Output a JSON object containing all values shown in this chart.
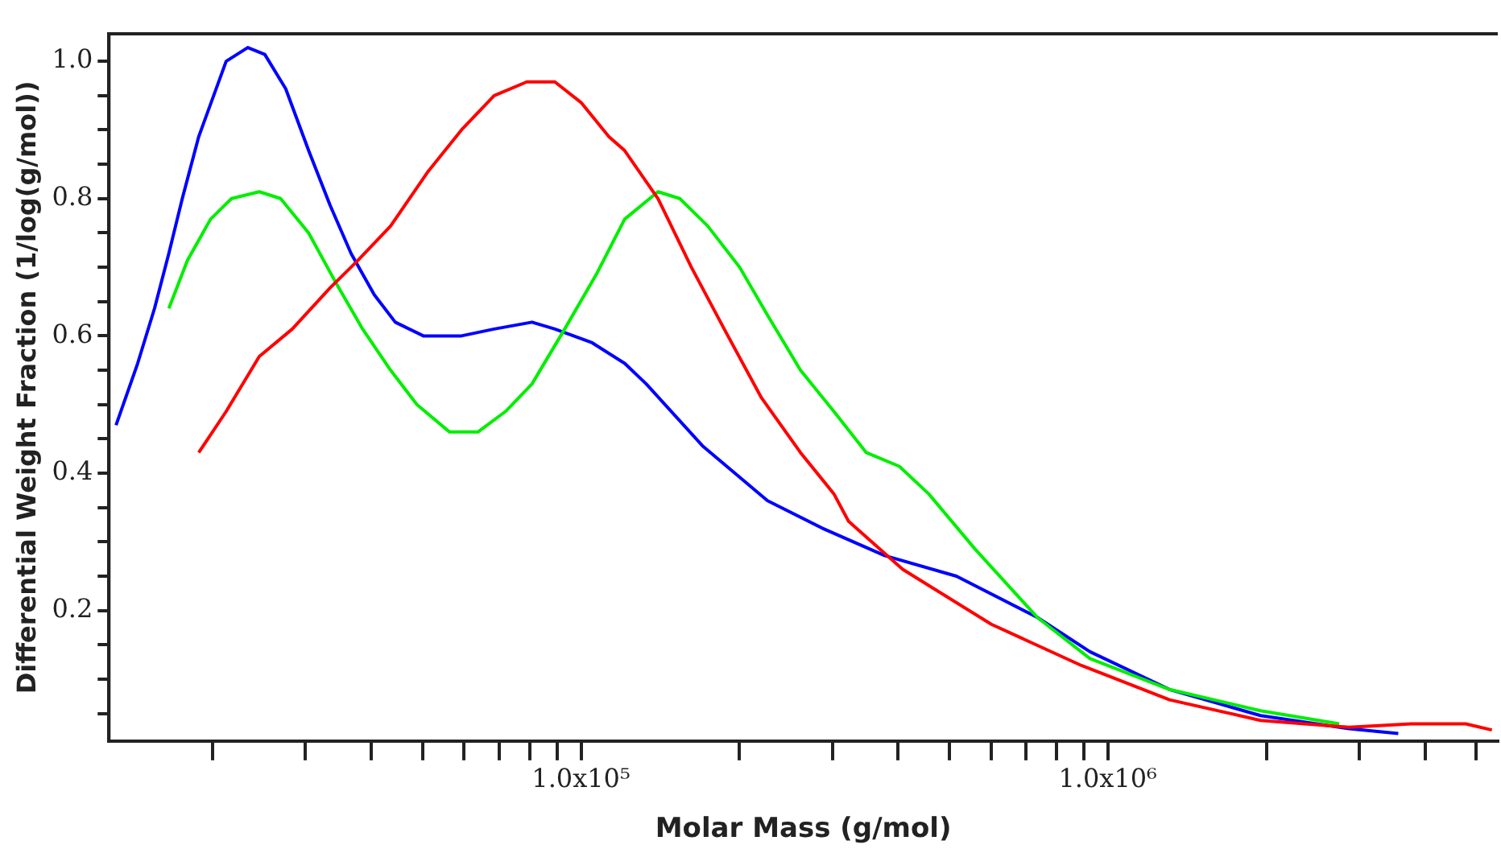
{
  "chart_data": {
    "type": "line",
    "xlabel": "Molar Mass (g/mol)",
    "ylabel": "Differential Weight Fraction (1/log(g/mol))",
    "log": "x",
    "grid": false,
    "legend": false,
    "marker": "none",
    "line_style": "solid",
    "xlim": [
      12700,
      5500000
    ],
    "ylim": [
      0.01,
      1.04
    ],
    "xticks": [
      {
        "value": 20000,
        "label": null
      },
      {
        "value": 30000,
        "label": null
      },
      {
        "value": 40000,
        "label": null
      },
      {
        "value": 50000,
        "label": null
      },
      {
        "value": 60000,
        "label": null
      },
      {
        "value": 70000,
        "label": null
      },
      {
        "value": 80000,
        "label": null
      },
      {
        "value": 90000,
        "label": null
      },
      {
        "value": 100000,
        "label": "1.0x10⁵"
      },
      {
        "value": 200000,
        "label": null
      },
      {
        "value": 300000,
        "label": null
      },
      {
        "value": 400000,
        "label": null
      },
      {
        "value": 500000,
        "label": null
      },
      {
        "value": 600000,
        "label": null
      },
      {
        "value": 700000,
        "label": null
      },
      {
        "value": 800000,
        "label": null
      },
      {
        "value": 900000,
        "label": null
      },
      {
        "value": 1000000,
        "label": "1.0x10⁶"
      },
      {
        "value": 2000000,
        "label": null
      },
      {
        "value": 3000000,
        "label": null
      },
      {
        "value": 4000000,
        "label": null
      },
      {
        "value": 5000000,
        "label": null
      }
    ],
    "yticks": [
      {
        "value": 0.05,
        "label": null
      },
      {
        "value": 0.1,
        "label": null
      },
      {
        "value": 0.15,
        "label": null
      },
      0.2,
      {
        "value": 0.25,
        "label": null
      },
      {
        "value": 0.3,
        "label": null
      },
      {
        "value": 0.35,
        "label": null
      },
      0.4,
      {
        "value": 0.45,
        "label": null
      },
      {
        "value": 0.5,
        "label": null
      },
      {
        "value": 0.55,
        "label": null
      },
      0.6,
      {
        "value": 0.65,
        "label": null
      },
      {
        "value": 0.7,
        "label": null
      },
      {
        "value": 0.75,
        "label": null
      },
      0.8,
      {
        "value": 0.85,
        "label": null
      },
      {
        "value": 0.9,
        "label": null
      },
      {
        "value": 0.95,
        "label": null
      },
      {
        "value": 1,
        "label": "1.0"
      }
    ],
    "series": [
      {
        "color": "#ff0000",
        "x": [
          18800,
          21200,
          24500,
          28300,
          33400,
          37700,
          43500,
          51300,
          59300,
          68400,
          78900,
          89200,
          100000,
          113000,
          121000,
          140000,
          162000,
          187000,
          220000,
          261000,
          302000,
          322000,
          408000,
          601000,
          891000,
          1310000,
          1950000,
          2870000,
          3770000,
          4780000,
          5360000
        ],
        "values": [
          0.43,
          0.49,
          0.57,
          0.61,
          0.67,
          0.71,
          0.76,
          0.84,
          0.9,
          0.95,
          0.97,
          0.97,
          0.94,
          0.89,
          0.87,
          0.8,
          0.7,
          0.61,
          0.51,
          0.43,
          0.37,
          0.33,
          0.26,
          0.18,
          0.12,
          0.07,
          0.04,
          0.03,
          0.035,
          0.035,
          0.026
        ]
      },
      {
        "color": "#00ee00",
        "x": [
          16500,
          17900,
          19800,
          21700,
          24500,
          26900,
          30400,
          34100,
          38500,
          43500,
          48800,
          56300,
          63700,
          71900,
          80700,
          93100,
          107000,
          121000,
          140000,
          154000,
          174000,
          200000,
          226000,
          261000,
          302000,
          348000,
          402000,
          457000,
          559000,
          735000,
          925000,
          1310000,
          1950000,
          2750000
        ],
        "values": [
          0.64,
          0.71,
          0.77,
          0.8,
          0.81,
          0.8,
          0.75,
          0.68,
          0.61,
          0.55,
          0.5,
          0.46,
          0.46,
          0.49,
          0.53,
          0.61,
          0.69,
          0.77,
          0.81,
          0.8,
          0.76,
          0.7,
          0.63,
          0.55,
          0.49,
          0.43,
          0.41,
          0.37,
          0.29,
          0.19,
          0.13,
          0.085,
          0.054,
          0.035
        ]
      },
      {
        "color": "#0000ff",
        "x": [
          13100,
          14400,
          15500,
          16500,
          17500,
          18800,
          21200,
          23300,
          25100,
          27500,
          30400,
          33400,
          36600,
          40500,
          44400,
          50200,
          59300,
          68400,
          80700,
          89200,
          105000,
          121000,
          133000,
          170000,
          226000,
          287000,
          377000,
          516000,
          735000,
          925000,
          1310000,
          1950000,
          2870000,
          3560000
        ],
        "values": [
          0.47,
          0.56,
          0.64,
          0.72,
          0.8,
          0.89,
          1,
          1.02,
          1.01,
          0.96,
          0.87,
          0.79,
          0.72,
          0.66,
          0.62,
          0.6,
          0.6,
          0.61,
          0.62,
          0.61,
          0.59,
          0.56,
          0.53,
          0.44,
          0.36,
          0.32,
          0.28,
          0.25,
          0.19,
          0.14,
          0.085,
          0.047,
          0.028,
          0.021
        ]
      }
    ]
  }
}
